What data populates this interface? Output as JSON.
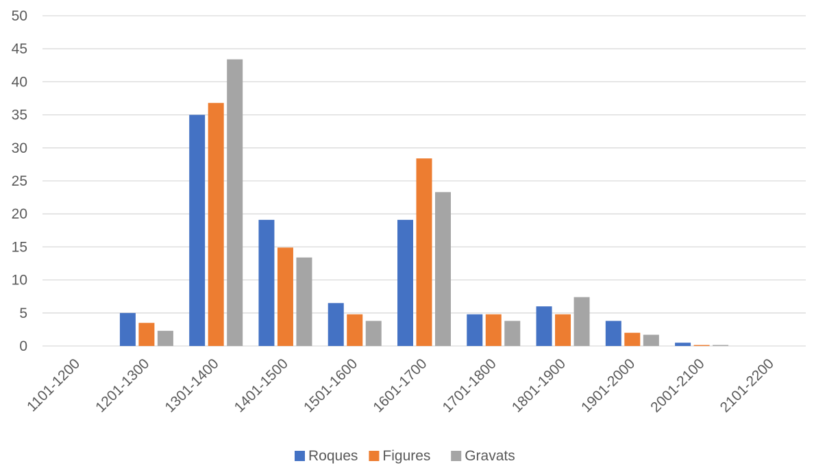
{
  "chart_data": {
    "type": "bar",
    "title": "",
    "xlabel": "",
    "ylabel": "",
    "ylim": [
      0,
      50
    ],
    "yticks": [
      0,
      5,
      10,
      15,
      20,
      25,
      30,
      35,
      40,
      45,
      50
    ],
    "grid": true,
    "legend_position": "bottom",
    "categories": [
      "1101-1200",
      "1201-1300",
      "1301-1400",
      "1401-1500",
      "1501-1600",
      "1601-1700",
      "1701-1800",
      "1801-1900",
      "1901-2000",
      "2001-2100",
      "2101-2200"
    ],
    "series": [
      {
        "name": "Roques",
        "color": "#4472c4",
        "values": [
          0,
          5.0,
          35.0,
          19.1,
          6.5,
          19.1,
          4.8,
          6.0,
          3.8,
          0.5,
          0
        ]
      },
      {
        "name": "Figures",
        "color": "#ed7d31",
        "values": [
          0,
          3.5,
          36.8,
          14.9,
          4.8,
          28.4,
          4.8,
          4.8,
          2.0,
          0.15,
          0
        ]
      },
      {
        "name": "Gravats",
        "color": "#a5a5a5",
        "values": [
          0,
          2.3,
          43.4,
          13.4,
          3.8,
          23.3,
          3.8,
          7.4,
          1.7,
          0.15,
          0
        ]
      }
    ]
  }
}
